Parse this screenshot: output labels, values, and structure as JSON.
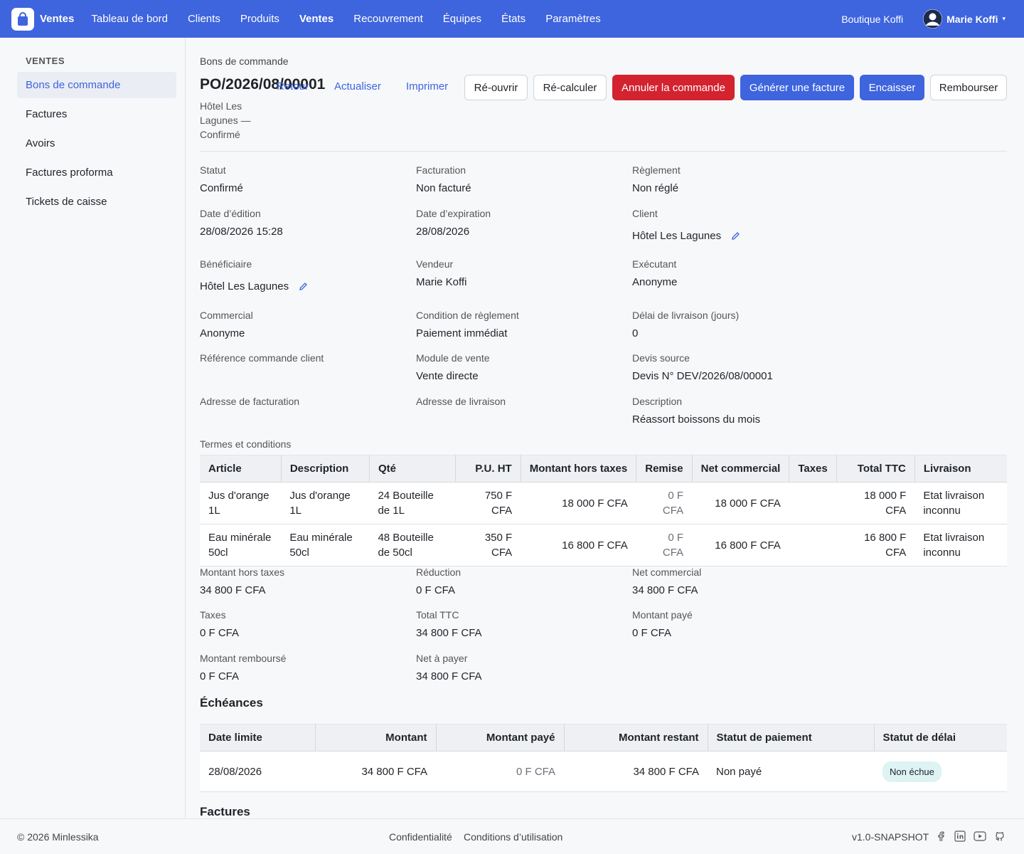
{
  "topbar": {
    "brand": "Ventes",
    "nav": [
      "Tableau de bord",
      "Clients",
      "Produits",
      "Ventes",
      "Recouvrement",
      "Équipes",
      "États",
      "Paramètres"
    ],
    "shop": "Boutique Koffi",
    "user": "Marie Koffi",
    "caret": "▾",
    "accent": "#3e64de"
  },
  "sidebar": {
    "section": "VENTES",
    "items": [
      "Bons de commande",
      "Factures",
      "Avoirs",
      "Factures proforma",
      "Tickets de caisse"
    ]
  },
  "header": {
    "breadcrumb": "Bons de commande",
    "title": "PO/2026/08/00001",
    "subtitle": "Hôtel Les Lagunes — Confirmé",
    "links": {
      "back": "Retour",
      "refresh": "Actualiser",
      "print": "Imprimer"
    },
    "buttons": {
      "reopen": "Ré-ouvrir",
      "recalc": "Ré-calculer",
      "cancel": "Annuler la commande",
      "invoice": "Générer une facture",
      "collect": "Encaisser",
      "refund": "Rembourser"
    }
  },
  "fields": {
    "status": {
      "label": "Statut",
      "value": "Confirmé"
    },
    "billing": {
      "label": "Facturation",
      "value": "Non facturé"
    },
    "payment": {
      "label": "Règlement",
      "value": "Non réglé"
    },
    "issue_date": {
      "label": "Date d’édition",
      "value": "28/08/2026 15:28"
    },
    "expiry_date": {
      "label": "Date d’expiration",
      "value": "28/08/2026"
    },
    "client": {
      "label": "Client",
      "value": "Hôtel Les Lagunes"
    },
    "beneficiary": {
      "label": "Bénéficiaire",
      "value": "Hôtel Les Lagunes"
    },
    "seller": {
      "label": "Vendeur",
      "value": "Marie Koffi"
    },
    "executor": {
      "label": "Exécutant",
      "value": "Anonyme"
    },
    "commercial": {
      "label": "Commercial",
      "value": "Anonyme"
    },
    "payment_terms": {
      "label": "Condition de règlement",
      "value": "Paiement immédiat"
    },
    "delivery_delay": {
      "label": "Délai de livraison (jours)",
      "value": "0"
    },
    "client_ref": {
      "label": "Référence commande client",
      "value": ""
    },
    "sales_module": {
      "label": "Module de vente",
      "value": "Vente directe"
    },
    "source_quote": {
      "label": "Devis source",
      "value": "Devis N° DEV/2026/08/00001"
    },
    "billing_address": {
      "label": "Adresse de facturation",
      "value": ""
    },
    "shipping_address": {
      "label": "Adresse de livraison",
      "value": ""
    },
    "description": {
      "label": "Description",
      "value": "Réassort boissons du mois"
    },
    "terms": {
      "label": "Termes et conditions"
    }
  },
  "lines": {
    "headers": [
      "Article",
      "Description",
      "Qté",
      "P.U. HT",
      "Montant hors taxes",
      "Remise",
      "Net commercial",
      "Taxes",
      "Total TTC",
      "Livraison"
    ],
    "rows": [
      [
        "Jus d'orange 1L",
        "Jus d'orange 1L",
        "24 Bouteille de 1L",
        "750 F CFA",
        "18 000 F CFA",
        "0 F CFA",
        "18 000 F CFA",
        "",
        "18 000 F CFA",
        "Etat livraison inconnu"
      ],
      [
        "Eau minérale 50cl",
        "Eau minérale 50cl",
        "48 Bouteille de 50cl",
        "350 F CFA",
        "16 800 F CFA",
        "0 F CFA",
        "16 800 F CFA",
        "",
        "16 800 F CFA",
        "Etat livraison inconnu"
      ]
    ]
  },
  "totals": {
    "ht": {
      "label": "Montant hors taxes",
      "value": "34 800 F CFA"
    },
    "reduction": {
      "label": "Réduction",
      "value": "0 F CFA"
    },
    "net": {
      "label": "Net commercial",
      "value": "34 800 F CFA"
    },
    "taxes": {
      "label": "Taxes",
      "value": "0 F CFA"
    },
    "ttc": {
      "label": "Total TTC",
      "value": "34 800 F CFA"
    },
    "paid": {
      "label": "Montant payé",
      "value": "0 F CFA"
    },
    "refunded": {
      "label": "Montant remboursé",
      "value": "0 F CFA"
    },
    "to_pay": {
      "label": "Net à payer",
      "value": "34 800 F CFA"
    }
  },
  "schedule": {
    "title": "Échéances",
    "headers": [
      "Date limite",
      "Montant",
      "Montant payé",
      "Montant restant",
      "Statut de paiement",
      "Statut de délai"
    ],
    "rows": [
      [
        "28/08/2026",
        "34 800 F CFA",
        "0 F CFA",
        "34 800 F CFA",
        "Non payé",
        "Non échue"
      ]
    ]
  },
  "invoices": {
    "title": "Factures"
  },
  "footer": {
    "copyright": "© 2026 Minlessika",
    "privacy": "Confidentialité",
    "terms": "Conditions d’utilisation",
    "version": "v1.0-SNAPSHOT"
  }
}
